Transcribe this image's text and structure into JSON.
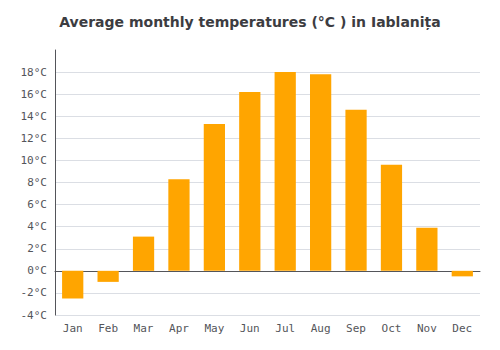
{
  "chart_data": {
    "type": "bar",
    "title": "Average monthly temperatures (°C ) in Iablanița",
    "categories": [
      "Jan",
      "Feb",
      "Mar",
      "Apr",
      "May",
      "Jun",
      "Jul",
      "Aug",
      "Sep",
      "Oct",
      "Nov",
      "Dec"
    ],
    "values": [
      -2.5,
      -1.0,
      3.1,
      8.3,
      13.3,
      16.2,
      18.0,
      17.8,
      14.6,
      9.6,
      3.9,
      -0.5
    ],
    "color": "#FFA500",
    "ylim": [
      -4,
      20
    ],
    "yticks": [
      {
        "value": -4,
        "label": "-4°C"
      },
      {
        "value": -2,
        "label": "-2°C"
      },
      {
        "value": 0,
        "label": "0°C"
      },
      {
        "value": 2,
        "label": "2°C"
      },
      {
        "value": 4,
        "label": "4°C"
      },
      {
        "value": 6,
        "label": "6°C"
      },
      {
        "value": 8,
        "label": "8°C"
      },
      {
        "value": 10,
        "label": "10°C"
      },
      {
        "value": 12,
        "label": "12°C"
      },
      {
        "value": 14,
        "label": "14°C"
      },
      {
        "value": 16,
        "label": "16°C"
      },
      {
        "value": 18,
        "label": "18°C"
      }
    ],
    "grid": true
  }
}
